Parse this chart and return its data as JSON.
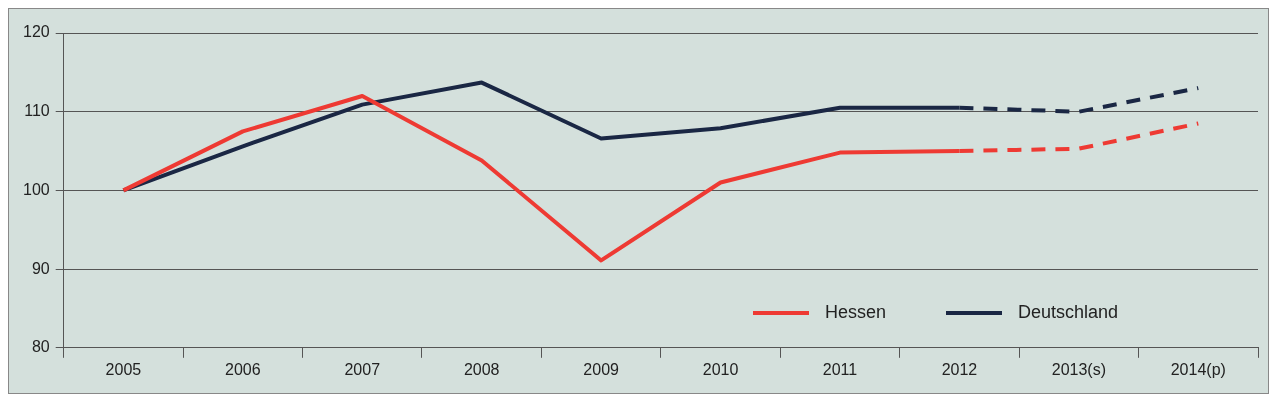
{
  "chart_data": {
    "type": "line",
    "categories": [
      "2005",
      "2006",
      "2007",
      "2008",
      "2009",
      "2010",
      "2011",
      "2012",
      "2013(s)",
      "2014(p)"
    ],
    "series": [
      {
        "name": "Hessen",
        "color": "#ee3a33",
        "values": [
          100,
          107.5,
          112,
          103.8,
          91.1,
          101,
          104.8,
          105,
          null,
          null
        ]
      },
      {
        "name": "Deutschland",
        "color": "#1a2744",
        "values": [
          100,
          105.6,
          110.9,
          113.7,
          106.6,
          107.9,
          110.5,
          110.5,
          null,
          null
        ]
      },
      {
        "color": "#ee3a33",
        "line_style": "dashed",
        "values": [
          null,
          null,
          null,
          null,
          null,
          null,
          null,
          105,
          105.3,
          108.5
        ]
      },
      {
        "color": "#1a2744",
        "line_style": "dashed",
        "values": [
          null,
          null,
          null,
          null,
          null,
          null,
          null,
          110.5,
          110,
          113
        ]
      }
    ],
    "ylim": [
      80,
      120
    ],
    "yticks": [
      80,
      90,
      100,
      110,
      120
    ],
    "grid": "y",
    "legend": "bottom right",
    "marker": "none",
    "line_style": "solid"
  }
}
